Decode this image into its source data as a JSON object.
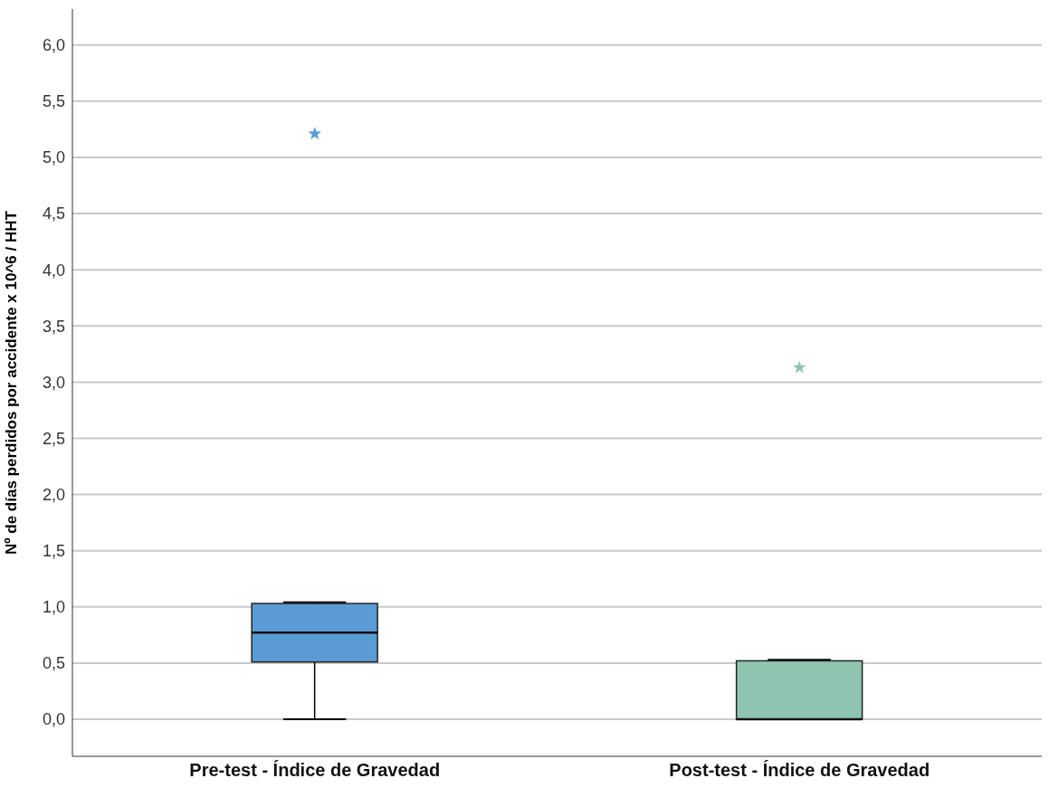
{
  "chart_data": {
    "type": "box",
    "ylabel": "Nº de días perdidos por accidente x 10^6 / HHT",
    "categories": [
      "Pre-test - Índice de Gravedad",
      "Post-test - Índice de Gravedad"
    ],
    "boxes": [
      {
        "low": 0,
        "q1": 0.51,
        "median": 0.77,
        "q3": 1.03,
        "high": 1.04,
        "outliers": [
          5.21
        ]
      },
      {
        "low": 0,
        "q1": 0,
        "median": 0,
        "q3": 0.52,
        "high": 0.53,
        "outliers": [
          3.13
        ]
      }
    ],
    "colors": [
      "#5b9bd5",
      "#8ec4b0"
    ],
    "ylim": [
      -0.33,
      6.32
    ],
    "yticks": [
      {
        "value": 0,
        "label": "0,0"
      },
      {
        "value": 0.5,
        "label": "0,5"
      },
      {
        "value": 1,
        "label": "1,0"
      },
      {
        "value": 1.5,
        "label": "1,5"
      },
      {
        "value": 2,
        "label": "2,0"
      },
      {
        "value": 2.5,
        "label": "2,5"
      },
      {
        "value": 3,
        "label": "3,0"
      },
      {
        "value": 3.5,
        "label": "3,5"
      },
      {
        "value": 4,
        "label": "4,0"
      },
      {
        "value": 4.5,
        "label": "4,5"
      },
      {
        "value": 5,
        "label": "5,0"
      },
      {
        "value": 5.5,
        "label": "5,5"
      },
      {
        "value": 6,
        "label": "6,0"
      }
    ],
    "grid": "y",
    "marker": "star"
  }
}
